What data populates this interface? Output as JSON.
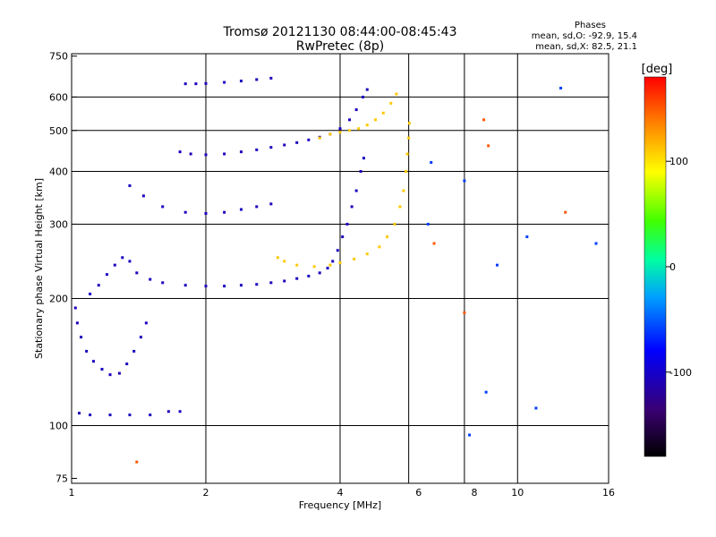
{
  "title": {
    "line1": "Tromsø 20121130 08:44:00-08:45:43",
    "line2": "RwPretec (8p)"
  },
  "stats": {
    "heading": "Phases",
    "line_o": "mean, sd,O: -92.9, 15.4",
    "line_x": "mean, sd,X: 82.5, 21.1"
  },
  "colorbar": {
    "label": "[deg]",
    "ticks": [
      {
        "value": 100,
        "label": "100"
      },
      {
        "value": 0,
        "label": "0"
      },
      {
        "value": -100,
        "label": "-100"
      }
    ],
    "range": [
      -180,
      180
    ]
  },
  "chart_data": {
    "type": "scatter",
    "title": "Tromsø 20121130 08:44:00-08:45:43 RwPretec (8p)",
    "xlabel": "Frequency [MHz]",
    "ylabel": "Stationary phase Virtual Height [km]",
    "x_scale": "log",
    "y_scale": "log",
    "xlim": [
      1,
      16
    ],
    "ylim": [
      73,
      760
    ],
    "x_ticks": [
      {
        "value": 1,
        "label": "1"
      },
      {
        "value": 2,
        "label": "2"
      },
      {
        "value": 4,
        "label": "4"
      },
      {
        "value": 6,
        "label": "6"
      },
      {
        "value": 8,
        "label": "8"
      },
      {
        "value": 10,
        "label": "10"
      },
      {
        "value": 16,
        "label": "16"
      }
    ],
    "x_gridlines": [
      1,
      2,
      4,
      5.7,
      7.6,
      10
    ],
    "y_ticks": [
      {
        "value": 75,
        "label": "75"
      },
      {
        "value": 100,
        "label": "100"
      },
      {
        "value": 200,
        "label": "200"
      },
      {
        "value": 300,
        "label": "300"
      },
      {
        "value": 400,
        "label": "400"
      },
      {
        "value": 500,
        "label": "500"
      },
      {
        "value": 600,
        "label": "600"
      },
      {
        "value": 750,
        "label": "750"
      }
    ],
    "y_gridlines": [
      100,
      200,
      300,
      400,
      500,
      600
    ],
    "grid": true,
    "color_encoding": "phase in degrees, -180 to 180",
    "series": [
      {
        "phase": -105,
        "points": [
          [
            1.02,
            190
          ],
          [
            1.03,
            175
          ],
          [
            1.05,
            162
          ],
          [
            1.08,
            150
          ],
          [
            1.12,
            142
          ],
          [
            1.17,
            136
          ],
          [
            1.22,
            132
          ],
          [
            1.28,
            133
          ],
          [
            1.33,
            140
          ],
          [
            1.38,
            150
          ],
          [
            1.43,
            162
          ],
          [
            1.47,
            175
          ]
        ]
      },
      {
        "phase": -105,
        "points": [
          [
            1.04,
            107
          ],
          [
            1.1,
            106
          ],
          [
            1.22,
            106
          ],
          [
            1.35,
            106
          ],
          [
            1.5,
            106
          ],
          [
            1.65,
            108
          ],
          [
            1.75,
            108
          ]
        ]
      },
      {
        "phase": -105,
        "points": [
          [
            1.1,
            205
          ],
          [
            1.15,
            215
          ],
          [
            1.2,
            228
          ],
          [
            1.25,
            240
          ],
          [
            1.3,
            250
          ],
          [
            1.35,
            245
          ],
          [
            1.4,
            230
          ],
          [
            1.5,
            222
          ],
          [
            1.6,
            218
          ],
          [
            1.8,
            215
          ],
          [
            2.0,
            214
          ],
          [
            2.2,
            214
          ],
          [
            2.4,
            215
          ],
          [
            2.6,
            216
          ],
          [
            2.8,
            218
          ],
          [
            3.0,
            220
          ],
          [
            3.2,
            223
          ],
          [
            3.4,
            226
          ],
          [
            3.6,
            230
          ],
          [
            3.75,
            236
          ],
          [
            3.85,
            245
          ],
          [
            3.95,
            260
          ],
          [
            4.05,
            280
          ],
          [
            4.15,
            300
          ],
          [
            4.25,
            330
          ],
          [
            4.35,
            360
          ],
          [
            4.45,
            400
          ],
          [
            4.52,
            430
          ]
        ]
      },
      {
        "phase": -105,
        "points": [
          [
            1.75,
            445
          ],
          [
            1.85,
            440
          ],
          [
            2.0,
            438
          ],
          [
            2.2,
            440
          ],
          [
            2.4,
            445
          ],
          [
            2.6,
            450
          ],
          [
            2.8,
            456
          ],
          [
            3.0,
            462
          ],
          [
            3.2,
            468
          ],
          [
            3.4,
            475
          ],
          [
            3.6,
            482
          ],
          [
            3.8,
            490
          ],
          [
            4.0,
            505
          ],
          [
            4.2,
            530
          ],
          [
            4.35,
            560
          ],
          [
            4.5,
            600
          ],
          [
            4.6,
            625
          ]
        ]
      },
      {
        "phase": -105,
        "points": [
          [
            1.35,
            370
          ],
          [
            1.45,
            350
          ],
          [
            1.6,
            330
          ],
          [
            1.8,
            320
          ],
          [
            2.0,
            318
          ],
          [
            2.2,
            320
          ],
          [
            2.4,
            325
          ],
          [
            2.6,
            330
          ],
          [
            2.8,
            335
          ]
        ]
      },
      {
        "phase": -105,
        "points": [
          [
            1.8,
            645
          ],
          [
            1.9,
            645
          ],
          [
            2.0,
            646
          ],
          [
            2.2,
            650
          ],
          [
            2.4,
            655
          ],
          [
            2.6,
            660
          ],
          [
            2.8,
            665
          ]
        ]
      },
      {
        "phase": 110,
        "points": [
          [
            2.9,
            250
          ],
          [
            3.0,
            245
          ],
          [
            3.2,
            240
          ],
          [
            3.5,
            238
          ],
          [
            3.8,
            240
          ],
          [
            4.0,
            243
          ],
          [
            4.3,
            248
          ],
          [
            4.6,
            255
          ],
          [
            4.9,
            265
          ],
          [
            5.1,
            280
          ],
          [
            5.3,
            300
          ],
          [
            5.45,
            330
          ],
          [
            5.55,
            360
          ],
          [
            5.62,
            400
          ],
          [
            5.66,
            440
          ],
          [
            5.7,
            480
          ],
          [
            5.72,
            520
          ]
        ]
      },
      {
        "phase": 110,
        "points": [
          [
            3.6,
            480
          ],
          [
            3.8,
            490
          ],
          [
            4.0,
            495
          ],
          [
            4.2,
            500
          ],
          [
            4.4,
            505
          ],
          [
            4.6,
            515
          ],
          [
            4.8,
            530
          ],
          [
            5.0,
            550
          ],
          [
            5.2,
            580
          ],
          [
            5.35,
            610
          ]
        ]
      },
      {
        "phase": -60,
        "points": [
          [
            12.5,
            630
          ],
          [
            10.5,
            280
          ],
          [
            15,
            270
          ],
          [
            8.5,
            120
          ],
          [
            9,
            240
          ],
          [
            7.8,
            95
          ],
          [
            11,
            110
          ],
          [
            6.4,
            420
          ],
          [
            6.3,
            300
          ],
          [
            7.6,
            380
          ]
        ]
      },
      {
        "phase": 150,
        "points": [
          [
            6.5,
            270
          ],
          [
            7.6,
            185
          ],
          [
            8.6,
            460
          ],
          [
            8.4,
            530
          ],
          [
            1.4,
            82
          ],
          [
            12.8,
            320
          ]
        ]
      }
    ]
  }
}
